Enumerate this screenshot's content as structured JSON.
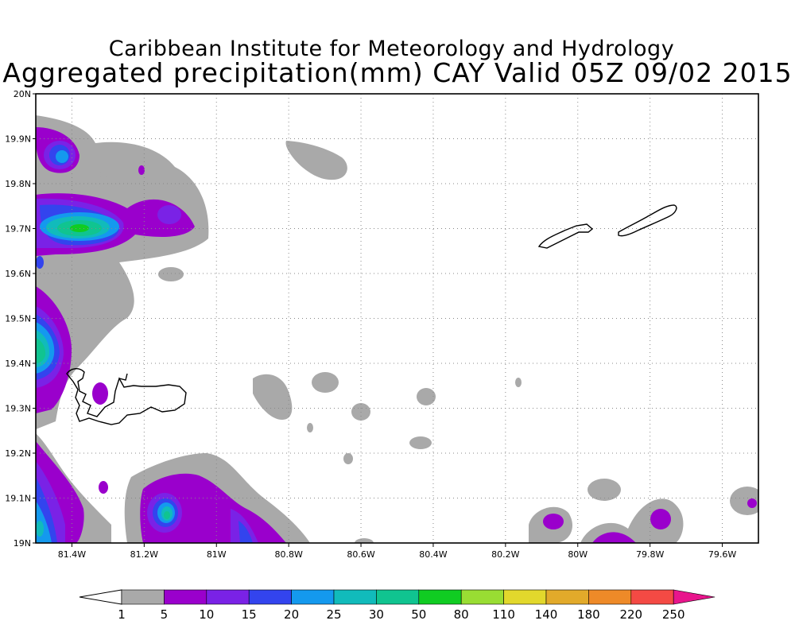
{
  "title_line1": "Caribbean Institute for Meteorology and Hydrology",
  "title_line2": "Aggregated precipitation(mm) CAY Valid 05Z 09/02 2015",
  "map": {
    "lon_range": [
      -81.5,
      -79.5
    ],
    "lat_range": [
      19.0,
      20.0
    ],
    "grid": true,
    "lon_ticks": [
      {
        "value": -81.4,
        "label": "81.4W"
      },
      {
        "value": -81.2,
        "label": "81.2W"
      },
      {
        "value": -81.0,
        "label": "81W"
      },
      {
        "value": -80.8,
        "label": "80.8W"
      },
      {
        "value": -80.6,
        "label": "80.6W"
      },
      {
        "value": -80.4,
        "label": "80.4W"
      },
      {
        "value": -80.2,
        "label": "80.2W"
      },
      {
        "value": -80.0,
        "label": "80W"
      },
      {
        "value": -79.8,
        "label": "79.8W"
      },
      {
        "value": -79.6,
        "label": "79.6W"
      }
    ],
    "lat_ticks": [
      {
        "value": 19.0,
        "label": "19N"
      },
      {
        "value": 19.1,
        "label": "19.1N"
      },
      {
        "value": 19.2,
        "label": "19.2N"
      },
      {
        "value": 19.3,
        "label": "19.3N"
      },
      {
        "value": 19.4,
        "label": "19.4N"
      },
      {
        "value": 19.5,
        "label": "19.5N"
      },
      {
        "value": 19.6,
        "label": "19.6N"
      },
      {
        "value": 19.7,
        "label": "19.7N"
      },
      {
        "value": 19.8,
        "label": "19.8N"
      },
      {
        "value": 19.9,
        "label": "19.9N"
      },
      {
        "value": 20.0,
        "label": "20N"
      }
    ]
  },
  "colorbar": {
    "levels": [
      "1",
      "5",
      "10",
      "15",
      "20",
      "25",
      "30",
      "50",
      "80",
      "110",
      "140",
      "180",
      "220",
      "250"
    ],
    "colors": [
      "#a9a9a9",
      "#9a00cc",
      "#7a22e6",
      "#3344ee",
      "#1499ee",
      "#11bbbb",
      "#10c490",
      "#10cc22",
      "#99dd33",
      "#e2d82c",
      "#e2aa2a",
      "#ee8a28",
      "#f44a44",
      "#e8158c"
    ],
    "below_color": "#ffffff"
  },
  "islands": [
    "Grand Cayman",
    "Little Cayman",
    "Cayman Brac"
  ]
}
